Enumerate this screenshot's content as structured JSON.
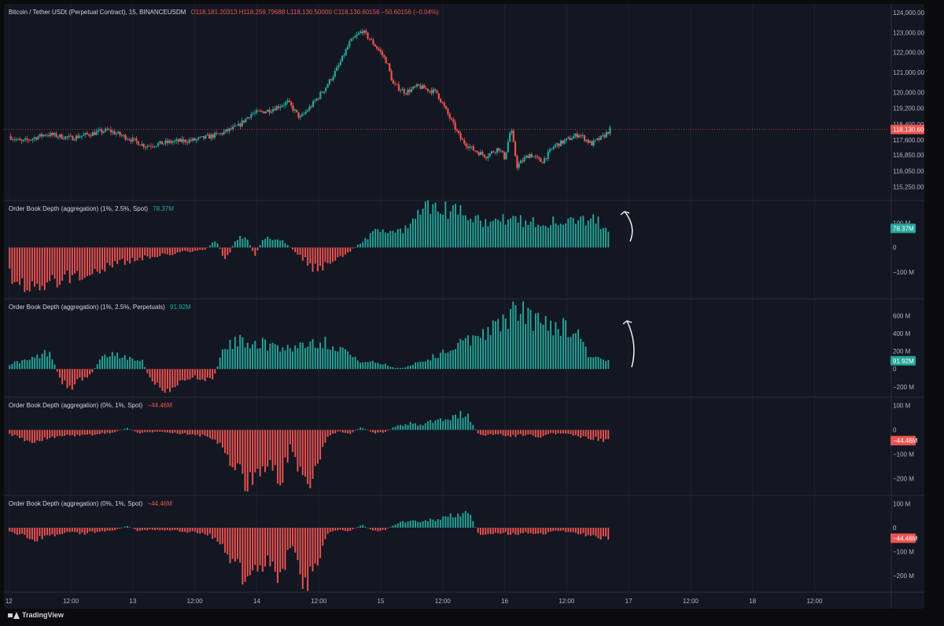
{
  "header": {
    "symbol": "Bitcoin / Tether USDt (Perpetual Contract), 15, BINANCEUSDM",
    "o": "O118,181.20313",
    "h": "H118,259.79688",
    "l": "L118,130.50000",
    "c": "C118,130.60156",
    "chg": "−50.60156 (−0.04%)"
  },
  "colors": {
    "bg": "#131722",
    "up": "#26a69a",
    "down": "#ef5350",
    "text": "#d1d4dc",
    "grid": "#2a2e39"
  },
  "brand": "TradingView",
  "chart_data": [
    {
      "type": "candlestick",
      "title": "Bitcoin / Tether USDt (Perpetual Contract), 15, BINANCEUSDM",
      "last_price": "118,130.60156",
      "last_value": 118130.6,
      "y_ticks": [
        "124,000.00000",
        "123,000.00000",
        "122,000.00000",
        "121,000.00000",
        "120,000.00000",
        "119,200.00000",
        "118,400.00000",
        "117,600.00000",
        "116,850.00000",
        "116,050.00000",
        "115,250.00000"
      ],
      "y_tick_values": [
        124000,
        123000,
        122000,
        121000,
        120000,
        119200,
        118400,
        117600,
        116850,
        116050,
        115250
      ],
      "ylim": [
        114800,
        124200
      ],
      "path": [
        [
          12.0,
          117800
        ],
        [
          12.1,
          117500
        ],
        [
          12.3,
          117900
        ],
        [
          12.5,
          117700
        ],
        [
          12.8,
          118100
        ],
        [
          13.0,
          117600
        ],
        [
          13.1,
          117300
        ],
        [
          13.3,
          117500
        ],
        [
          13.5,
          117600
        ],
        [
          13.7,
          117900
        ],
        [
          13.85,
          118300
        ],
        [
          13.95,
          118900
        ],
        [
          14.1,
          119100
        ],
        [
          14.25,
          119500
        ],
        [
          14.35,
          118700
        ],
        [
          14.45,
          119400
        ],
        [
          14.55,
          120200
        ],
        [
          14.65,
          121200
        ],
        [
          14.75,
          122500
        ],
        [
          14.85,
          123100
        ],
        [
          14.92,
          122600
        ],
        [
          15.0,
          122000
        ],
        [
          15.05,
          121500
        ],
        [
          15.1,
          120400
        ],
        [
          15.2,
          120000
        ],
        [
          15.3,
          120300
        ],
        [
          15.45,
          120000
        ],
        [
          15.55,
          118800
        ],
        [
          15.65,
          117600
        ],
        [
          15.75,
          117100
        ],
        [
          15.85,
          116800
        ],
        [
          15.95,
          117200
        ],
        [
          16.0,
          116700
        ],
        [
          16.05,
          118200
        ],
        [
          16.1,
          116300
        ],
        [
          16.2,
          116900
        ],
        [
          16.3,
          116500
        ],
        [
          16.4,
          117300
        ],
        [
          16.5,
          117600
        ],
        [
          16.6,
          117900
        ],
        [
          16.7,
          117400
        ],
        [
          16.8,
          117800
        ],
        [
          16.85,
          118130
        ]
      ]
    },
    {
      "type": "bar",
      "title": "Order Book Depth (aggregation) (1%, 2.5%, Spot)",
      "last_value_label": "78.37M",
      "y_ticks": [
        "100 M",
        "0",
        "−100 M"
      ],
      "y_tick_values": [
        100,
        0,
        -100
      ],
      "ylim": [
        -200,
        185
      ],
      "unit": "M",
      "values": [
        -120,
        -160,
        -185,
        -170,
        -150,
        -135,
        -128,
        -120,
        -110,
        -96,
        -80,
        -68,
        -60,
        -50,
        -42,
        -35,
        -30,
        -24,
        -18,
        -14,
        -8,
        32,
        -58,
        32,
        48,
        -32,
        48,
        40,
        22,
        -14,
        -50,
        -92,
        -78,
        -62,
        -38,
        -4,
        26,
        62,
        65,
        60,
        72,
        108,
        152,
        162,
        158,
        148,
        148,
        150,
        112,
        114,
        120,
        114,
        112,
        112,
        108,
        110,
        106,
        100,
        112,
        116,
        110,
        78
      ],
      "x_start": 12.0,
      "x_end": 16.85
    },
    {
      "type": "bar",
      "title": "Order Book Depth (aggregation) (1%, 2.5%, Perpetuals)",
      "last_value_label": "91.92M",
      "y_ticks": [
        "600 M",
        "400 M",
        "200 M",
        "0",
        "−200 M"
      ],
      "y_tick_values": [
        600,
        400,
        200,
        0,
        -200
      ],
      "ylim": [
        -290,
        700
      ],
      "unit": "M",
      "values": [
        60,
        88,
        105,
        158,
        210,
        -150,
        -210,
        -120,
        -60,
        118,
        182,
        152,
        128,
        122,
        -160,
        -245,
        -232,
        -148,
        -98,
        -102,
        -148,
        212,
        292,
        330,
        318,
        290,
        272,
        252,
        250,
        292,
        322,
        308,
        272,
        232,
        116,
        82,
        76,
        52,
        12,
        18,
        72,
        102,
        152,
        218,
        258,
        322,
        380,
        460,
        470,
        612,
        652,
        640,
        540,
        538,
        510,
        464,
        448,
        172,
        120,
        92
      ],
      "x_start": 12.0,
      "x_end": 16.85
    },
    {
      "type": "bar",
      "title": "Order Book Depth (aggregation) (0%, 1%, Spot)",
      "last_value_label": "−44.46M",
      "y_ticks": [
        "100 M",
        "0",
        "−100 M",
        "−200 M"
      ],
      "y_tick_values": [
        100,
        0,
        -100,
        -200
      ],
      "ylim": [
        -260,
        125
      ],
      "unit": "M",
      "values": [
        -22,
        -34,
        -52,
        -40,
        -30,
        -18,
        -28,
        -20,
        -15,
        -10,
        8,
        -14,
        -8,
        -10,
        -12,
        -18,
        -22,
        -32,
        -60,
        -140,
        -225,
        -188,
        -150,
        -222,
        -62,
        -225,
        -205,
        -28,
        -8,
        -14,
        12,
        -14,
        -10,
        18,
        28,
        22,
        36,
        44,
        60,
        70,
        -28,
        -24,
        -22,
        -28,
        -20,
        -32,
        -18,
        -14,
        -22,
        -30,
        -40,
        -44
      ],
      "x_start": 12.0,
      "x_end": 16.85
    },
    {
      "type": "bar",
      "title": "Order Book Depth (aggregation) (0%, 1%, Spot)",
      "last_value_label": "−44.46M",
      "y_ticks": [
        "100 M",
        "0",
        "−100 M",
        "−200 M"
      ],
      "y_tick_values": [
        100,
        0,
        -100,
        -200
      ],
      "ylim": [
        -260,
        125
      ],
      "unit": "M",
      "values": [
        -22,
        -34,
        -52,
        -40,
        -30,
        -18,
        -28,
        -20,
        -15,
        -10,
        8,
        -14,
        -8,
        -10,
        -12,
        -18,
        -22,
        -32,
        -60,
        -140,
        -225,
        -188,
        -150,
        -222,
        -62,
        -225,
        -205,
        -28,
        -8,
        -14,
        12,
        -14,
        -10,
        18,
        28,
        22,
        36,
        44,
        60,
        70,
        -28,
        -24,
        -22,
        -28,
        -20,
        -32,
        -18,
        -14,
        -22,
        -30,
        -40,
        -44
      ],
      "x_start": 12.0,
      "x_end": 16.85
    }
  ],
  "x_axis": {
    "labels": [
      "12",
      "12:00",
      "13",
      "12:00",
      "14",
      "12:00",
      "15",
      "12:00",
      "16",
      "12:00",
      "17",
      "12:00",
      "18",
      "12:00"
    ],
    "label_values": [
      12.0,
      12.5,
      13.0,
      13.5,
      14.0,
      14.5,
      15.0,
      15.5,
      16.0,
      16.5,
      17.0,
      17.5,
      18.0,
      18.5
    ],
    "xlim": [
      11.96,
      19.1
    ]
  },
  "annotations": [
    {
      "type": "arrow-up",
      "pane": 1
    },
    {
      "type": "arrow-up",
      "pane": 2
    }
  ]
}
